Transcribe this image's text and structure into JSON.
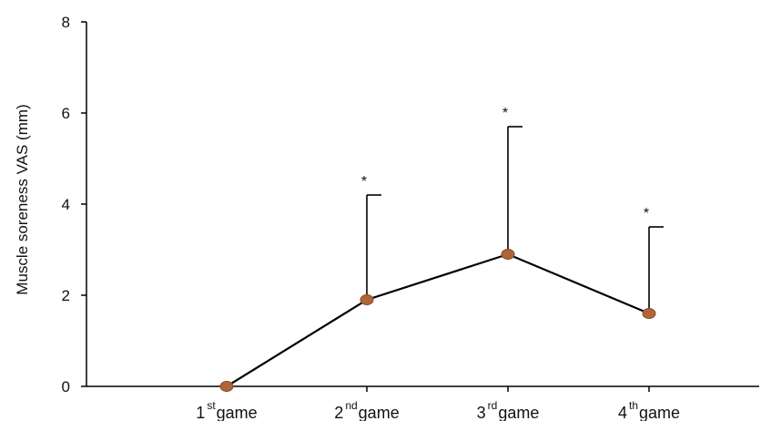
{
  "chart_data": {
    "type": "line",
    "title": "",
    "xlabel": "",
    "ylabel": "Muscle soreness VAS (mm)",
    "ylim": [
      0,
      8
    ],
    "yticks": [
      0,
      2,
      4,
      6,
      8
    ],
    "categories": [
      {
        "num": "1",
        "suffix": "st",
        "word": "game"
      },
      {
        "num": "2",
        "suffix": "nd",
        "word": "game"
      },
      {
        "num": "3",
        "suffix": "rd",
        "word": "game"
      },
      {
        "num": "4",
        "suffix": "th",
        "word": "game"
      }
    ],
    "series": [
      {
        "values": [
          0,
          1.9,
          2.9,
          1.6
        ],
        "error_upper": [
          0,
          4.2,
          5.7,
          3.5
        ],
        "significance": [
          "",
          "*",
          "*",
          "*"
        ]
      }
    ],
    "line_color": "#000000",
    "marker_color": "#b0643a",
    "marker_stroke": "#8a4a28",
    "grid": false,
    "legend": "none"
  }
}
